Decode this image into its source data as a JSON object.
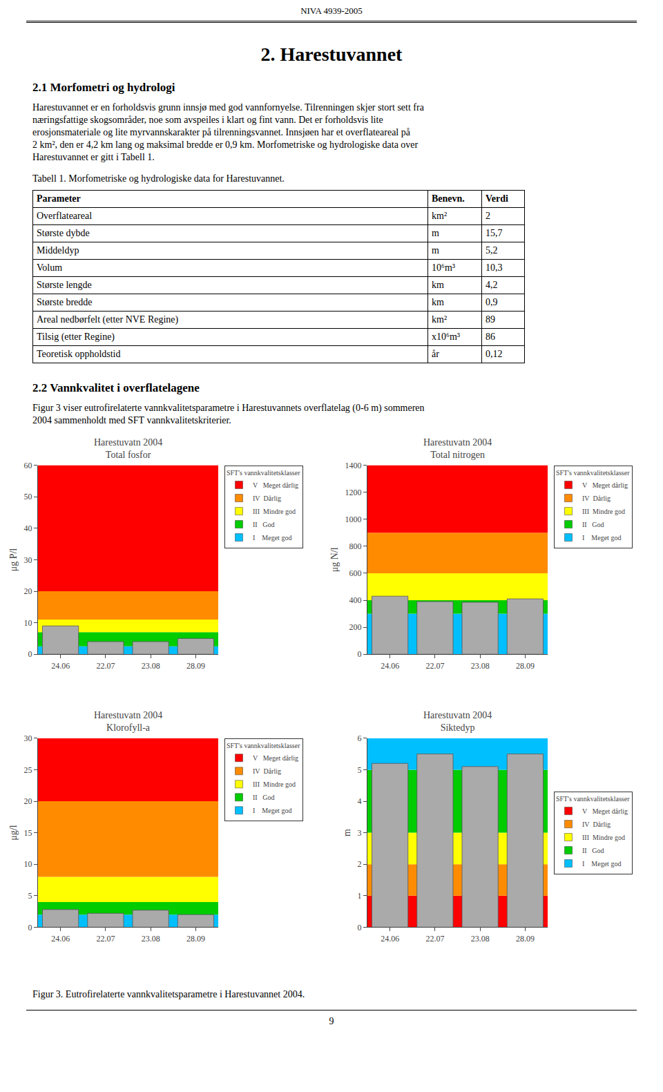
{
  "page_text": {
    "header": "NIVA 4939-2005",
    "title": "2. Harestuvannet",
    "section1": "2.1 Morfometri og hydrologi",
    "paragraph1": [
      "Harestuvannet er en forholdsvis grunn innsjø med god vannfornyelse. Tilrenningen skjer stort sett fra",
      "næringsfattige skogsområder, noe som avspeiles i klart og fint vann. Det er forholdsvis lite",
      "erosjonsmateriale og lite myrvannskarakter på tilrenningsvannet. Innsjøen har et overflateareal på",
      "2 km², den er 4,2 km lang og maksimal bredde er 0,9 km. Morfometriske og hydrologiske data over",
      "Harestuvannet er gitt i Tabell 1."
    ],
    "table_caption": "Tabell 1. Morfometriske og hydrologiske data for Harestuvannet.",
    "section2": "2.2 Vannkvalitet i overflatelagene",
    "paragraph2": [
      "Figur 3 viser eutrofirelaterte vannkvalitetsparametre i Harestuvannets overflatelag (0-6 m) sommeren",
      "2004 sammenholdt med SFT vannkvalitetskriterier."
    ],
    "figure_caption": "Figur 3. Eutrofirelaterte vannkvalitetsparametre i Harestuvannet 2004.",
    "page_number": "9"
  },
  "table": {
    "columns": [
      "Parameter",
      "Benevn.",
      "Verdi"
    ],
    "rows": [
      [
        "Overflateareal",
        "km²",
        "2"
      ],
      [
        "Største dybde",
        "m",
        "15,7"
      ],
      [
        "Middeldyp",
        "m",
        "5,2"
      ],
      [
        "Volum",
        "10⁶m³",
        "10,3"
      ],
      [
        "Største lengde",
        "km",
        "4,2"
      ],
      [
        "Største bredde",
        "km",
        "0,9"
      ],
      [
        "Areal nedbørfelt (etter NVE Regine)",
        "km²",
        "89"
      ],
      [
        "Tilsig (etter Regine)",
        "x10⁶m³",
        "86"
      ],
      [
        "Teoretisk oppholdstid",
        "år",
        "0,12"
      ]
    ]
  },
  "chart_data": [
    {
      "type": "bar",
      "title": "Harestuvatn 2004\nTotal fosfor",
      "ylabel": "μg P/l",
      "categories": [
        "24.06",
        "22.07",
        "23.08",
        "28.09"
      ],
      "values": [
        9,
        4,
        4,
        5
      ],
      "color": "#AAAAAA",
      "ylim": [
        0,
        60
      ],
      "yticks": [
        0,
        10,
        20,
        30,
        40,
        50,
        60
      ],
      "grid": false,
      "bands": [
        {
          "y0": 0,
          "y1": 2.5,
          "color": "#00BFFF"
        },
        {
          "y0": 2.5,
          "y1": 7,
          "color": "#00CC00"
        },
        {
          "y0": 7,
          "y1": 11,
          "color": "#FFFF00"
        },
        {
          "y0": 11,
          "y1": 20,
          "color": "#FF8C00"
        },
        {
          "y0": 20,
          "y1": 60,
          "color": "#FF0000"
        }
      ],
      "legend": "upper right",
      "legend_title": "SFT's vannkvalitetsklasser",
      "legend_entries": [
        {
          "name": "V   Meget dårlig",
          "color": "#FF0000"
        },
        {
          "name": "IV  Dårlig",
          "color": "#FF8C00"
        },
        {
          "name": "III  Mindre god",
          "color": "#FFFF00"
        },
        {
          "name": "II   God",
          "color": "#00CC00"
        },
        {
          "name": "I    Meget god",
          "color": "#00BFFF"
        }
      ]
    },
    {
      "type": "bar",
      "title": "Harestuvatn 2004\nTotal nitrogen",
      "ylabel": "μg N/l",
      "categories": [
        "24.06",
        "22.07",
        "23.08",
        "28.09"
      ],
      "values": [
        430,
        390,
        385,
        410
      ],
      "color": "#AAAAAA",
      "ylim": [
        0,
        1400
      ],
      "yticks": [
        0,
        200,
        400,
        600,
        800,
        1000,
        1200,
        1400
      ],
      "grid": false,
      "bands": [
        {
          "y0": 0,
          "y1": 300,
          "color": "#00BFFF"
        },
        {
          "y0": 300,
          "y1": 400,
          "color": "#00CC00"
        },
        {
          "y0": 400,
          "y1": 600,
          "color": "#FFFF00"
        },
        {
          "y0": 600,
          "y1": 900,
          "color": "#FF8C00"
        },
        {
          "y0": 900,
          "y1": 1400,
          "color": "#FF0000"
        }
      ],
      "legend": "upper right",
      "legend_title": "SFT's vannkvalitetsklasser",
      "legend_entries": [
        {
          "name": "V   Meget dårlig",
          "color": "#FF0000"
        },
        {
          "name": "IV  Dårlig",
          "color": "#FF8C00"
        },
        {
          "name": "III  Mindre god",
          "color": "#FFFF00"
        },
        {
          "name": "II   God",
          "color": "#00CC00"
        },
        {
          "name": "I    Meget god",
          "color": "#00BFFF"
        }
      ]
    },
    {
      "type": "bar",
      "title": "Harestuvatn 2004\nKlorofyll-a",
      "ylabel": "μg/l",
      "categories": [
        "24.06",
        "22.07",
        "23.08",
        "28.09"
      ],
      "values": [
        2.8,
        2.2,
        2.7,
        2.0
      ],
      "color": "#AAAAAA",
      "ylim": [
        0,
        30
      ],
      "yticks": [
        0,
        5,
        10,
        15,
        20,
        25,
        30
      ],
      "grid": false,
      "bands": [
        {
          "y0": 0,
          "y1": 2,
          "color": "#00BFFF"
        },
        {
          "y0": 2,
          "y1": 4,
          "color": "#00CC00"
        },
        {
          "y0": 4,
          "y1": 8,
          "color": "#FFFF00"
        },
        {
          "y0": 8,
          "y1": 20,
          "color": "#FF8C00"
        },
        {
          "y0": 20,
          "y1": 30,
          "color": "#FF0000"
        }
      ],
      "legend": "upper right",
      "legend_title": "SFT's vannkvalitetsklasser",
      "legend_entries": [
        {
          "name": "V   Meget dårlig",
          "color": "#FF0000"
        },
        {
          "name": "IV  Dårlig",
          "color": "#FF8C00"
        },
        {
          "name": "III  Mindre god",
          "color": "#FFFF00"
        },
        {
          "name": "II   God",
          "color": "#00CC00"
        },
        {
          "name": "I    Meget god",
          "color": "#00BFFF"
        }
      ]
    },
    {
      "type": "bar",
      "title": "Harestuvatn 2004\nSiktedyp",
      "ylabel": "m",
      "categories": [
        "24.06",
        "22.07",
        "23.08",
        "28.09"
      ],
      "values": [
        5.2,
        5.5,
        5.1,
        5.5
      ],
      "color": "#AAAAAA",
      "ylim": [
        0,
        6
      ],
      "yticks": [
        0,
        1,
        2,
        3,
        4,
        5,
        6
      ],
      "grid": false,
      "bands": [
        {
          "y0": 0,
          "y1": 1,
          "color": "#FF0000"
        },
        {
          "y0": 1,
          "y1": 2,
          "color": "#FF8C00"
        },
        {
          "y0": 2,
          "y1": 3,
          "color": "#FFFF00"
        },
        {
          "y0": 3,
          "y1": 5,
          "color": "#00CC00"
        },
        {
          "y0": 5,
          "y1": 6,
          "color": "#00BFFF"
        }
      ],
      "legend": "center right",
      "legend_title": "SFT's vannkvalitetsklasser",
      "legend_entries": [
        {
          "name": "V   Meget dårlig",
          "color": "#FF0000"
        },
        {
          "name": "IV  Dårlig",
          "color": "#FF8C00"
        },
        {
          "name": "III  Mindre god",
          "color": "#FFFF00"
        },
        {
          "name": "II   God",
          "color": "#00CC00"
        },
        {
          "name": "I    Meget god",
          "color": "#00BFFF"
        }
      ]
    }
  ]
}
